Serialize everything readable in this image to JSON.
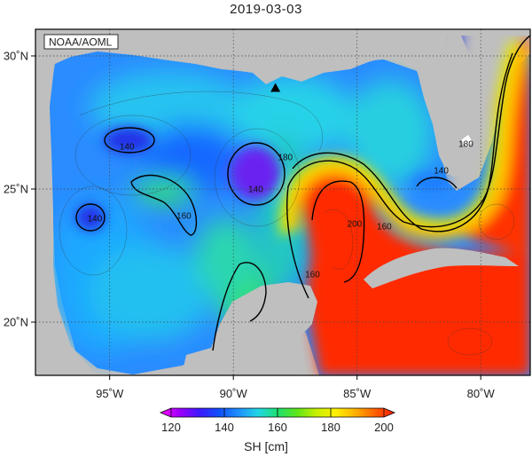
{
  "title": "2019-03-03",
  "credit": "NOAA/AOML",
  "colors": {
    "land": "#bfbfbf",
    "frame": "#000000",
    "grid": "#555555"
  },
  "map": {
    "lon_range": [
      -98,
      -78
    ],
    "lat_range": [
      18,
      31
    ],
    "lon_ticks": [
      {
        "value": -95,
        "label": "95˚W"
      },
      {
        "value": -90,
        "label": "90˚W"
      },
      {
        "value": -85,
        "label": "85˚W"
      },
      {
        "value": -80,
        "label": "80˚W"
      }
    ],
    "lat_ticks": [
      {
        "value": 30,
        "label": "30˚N"
      },
      {
        "value": 25,
        "label": "25˚N"
      },
      {
        "value": 20,
        "label": "20˚N"
      }
    ],
    "marker": {
      "shape": "triangle",
      "lon": -88.3,
      "lat": 28.8
    },
    "contour_labels": [
      {
        "text": "140",
        "lon": -94.3,
        "lat": 26.6
      },
      {
        "text": "140",
        "lon": -95.6,
        "lat": 23.9
      },
      {
        "text": "140",
        "lon": -89.1,
        "lat": 25.0
      },
      {
        "text": "140",
        "lon": -81.6,
        "lat": 25.7
      },
      {
        "text": "160",
        "lon": -92.0,
        "lat": 24.0
      },
      {
        "text": "160",
        "lon": -83.9,
        "lat": 23.6
      },
      {
        "text": "160",
        "lon": -86.8,
        "lat": 21.8
      },
      {
        "text": "180",
        "lon": -87.9,
        "lat": 26.2
      },
      {
        "text": "180",
        "lon": -80.6,
        "lat": 26.7
      },
      {
        "text": "200",
        "lon": -85.1,
        "lat": 23.7
      }
    ]
  },
  "colorbar": {
    "min": 120,
    "max": 200,
    "ticks": [
      120,
      140,
      160,
      180,
      200
    ],
    "label": "SH [cm]",
    "stops": [
      "#ff00ff",
      "#9b00ff",
      "#3d1aff",
      "#1050ff",
      "#1e90ff",
      "#22d6e6",
      "#1ee070",
      "#5ee619",
      "#c8f000",
      "#fff000",
      "#ffb000",
      "#ff6000",
      "#ff1a00"
    ]
  }
}
